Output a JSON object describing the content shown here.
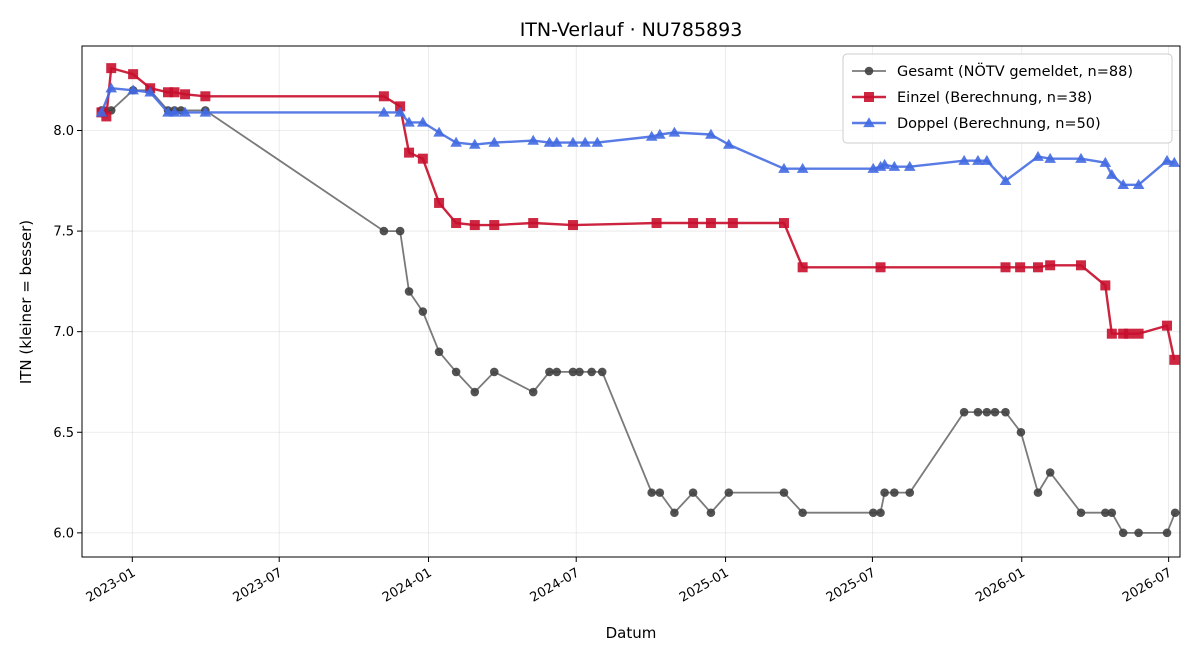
{
  "chart_data": {
    "type": "line",
    "title": "ITN-Verlauf · NU785893",
    "xlabel": "Datum",
    "ylabel": "ITN  (kleiner = besser)",
    "x_axis": "date",
    "xlim": [
      "2022-10-31",
      "2026-07-15"
    ],
    "ylim": [
      5.88,
      8.42
    ],
    "x_ticks": [
      "2023-01-01",
      "2023-07-01",
      "2024-01-01",
      "2024-07-01",
      "2025-01-01",
      "2025-07-01",
      "2026-01-01",
      "2026-07-01"
    ],
    "x_tick_labels": [
      "2023-01",
      "2023-07",
      "2024-01",
      "2024-07",
      "2025-01",
      "2025-07",
      "2026-01",
      "2026-07"
    ],
    "y_ticks": [
      6.0,
      6.5,
      7.0,
      7.5,
      8.0
    ],
    "y_tick_labels": [
      "6.0",
      "6.5",
      "7.0",
      "7.5",
      "8.0"
    ],
    "grid": true,
    "legend_position": "top-right",
    "series": [
      {
        "name": "Gesamt (NÖTV gemeldet, n=88)",
        "color": "#555555",
        "marker": "circle",
        "points": [
          [
            "2022-11-24",
            8.1
          ],
          [
            "2022-11-27",
            8.1
          ],
          [
            "2022-12-06",
            8.1
          ],
          [
            "2023-01-02",
            8.2
          ],
          [
            "2023-01-23",
            8.2
          ],
          [
            "2023-02-14",
            8.1
          ],
          [
            "2023-02-22",
            8.1
          ],
          [
            "2023-03-02",
            8.1
          ],
          [
            "2023-04-01",
            8.1
          ],
          [
            "2023-11-07",
            7.5
          ],
          [
            "2023-11-27",
            7.5
          ],
          [
            "2023-12-08",
            7.2
          ],
          [
            "2023-12-25",
            7.1
          ],
          [
            "2024-01-14",
            6.9
          ],
          [
            "2024-02-04",
            6.8
          ],
          [
            "2024-02-27",
            6.7
          ],
          [
            "2024-03-22",
            6.8
          ],
          [
            "2024-05-09",
            6.7
          ],
          [
            "2024-05-29",
            6.8
          ],
          [
            "2024-06-07",
            6.8
          ],
          [
            "2024-06-27",
            6.8
          ],
          [
            "2024-07-05",
            6.8
          ],
          [
            "2024-07-20",
            6.8
          ],
          [
            "2024-08-02",
            6.8
          ],
          [
            "2024-10-02",
            6.2
          ],
          [
            "2024-10-12",
            6.2
          ],
          [
            "2024-10-30",
            6.1
          ],
          [
            "2024-11-22",
            6.2
          ],
          [
            "2024-12-14",
            6.1
          ],
          [
            "2025-01-05",
            6.2
          ],
          [
            "2025-03-14",
            6.2
          ],
          [
            "2025-04-06",
            6.1
          ],
          [
            "2025-07-02",
            6.1
          ],
          [
            "2025-07-11",
            6.1
          ],
          [
            "2025-07-16",
            6.2
          ],
          [
            "2025-07-28",
            6.2
          ],
          [
            "2025-08-16",
            6.2
          ],
          [
            "2025-10-22",
            6.6
          ],
          [
            "2025-11-08",
            6.6
          ],
          [
            "2025-11-19",
            6.6
          ],
          [
            "2025-11-29",
            6.6
          ],
          [
            "2025-12-12",
            6.6
          ],
          [
            "2025-12-31",
            6.5
          ],
          [
            "2026-01-21",
            6.2
          ],
          [
            "2026-02-05",
            6.3
          ],
          [
            "2026-03-15",
            6.1
          ],
          [
            "2026-04-14",
            6.1
          ],
          [
            "2026-04-22",
            6.1
          ],
          [
            "2026-05-06",
            6.0
          ],
          [
            "2026-05-25",
            6.0
          ],
          [
            "2026-06-29",
            6.0
          ],
          [
            "2026-07-09",
            6.1
          ]
        ]
      },
      {
        "name": "Einzel (Berechnung, n=38)",
        "color": "#c8102e",
        "marker": "square",
        "points": [
          [
            "2022-11-24",
            8.09
          ],
          [
            "2022-11-30",
            8.07
          ],
          [
            "2022-12-06",
            8.31
          ],
          [
            "2023-01-02",
            8.28
          ],
          [
            "2023-01-23",
            8.21
          ],
          [
            "2023-02-14",
            8.19
          ],
          [
            "2023-02-22",
            8.19
          ],
          [
            "2023-03-07",
            8.18
          ],
          [
            "2023-04-01",
            8.17
          ],
          [
            "2023-11-07",
            8.17
          ],
          [
            "2023-11-27",
            8.12
          ],
          [
            "2023-12-08",
            7.89
          ],
          [
            "2023-12-25",
            7.86
          ],
          [
            "2024-01-14",
            7.64
          ],
          [
            "2024-02-04",
            7.54
          ],
          [
            "2024-02-27",
            7.53
          ],
          [
            "2024-03-22",
            7.53
          ],
          [
            "2024-05-09",
            7.54
          ],
          [
            "2024-06-27",
            7.53
          ],
          [
            "2024-10-08",
            7.54
          ],
          [
            "2024-11-22",
            7.54
          ],
          [
            "2024-12-14",
            7.54
          ],
          [
            "2025-01-10",
            7.54
          ],
          [
            "2025-03-14",
            7.54
          ],
          [
            "2025-04-06",
            7.32
          ],
          [
            "2025-07-11",
            7.32
          ],
          [
            "2025-12-12",
            7.32
          ],
          [
            "2025-12-30",
            7.32
          ],
          [
            "2026-01-21",
            7.32
          ],
          [
            "2026-02-05",
            7.33
          ],
          [
            "2026-03-15",
            7.33
          ],
          [
            "2026-04-14",
            7.23
          ],
          [
            "2026-04-22",
            6.99
          ],
          [
            "2026-05-06",
            6.99
          ],
          [
            "2026-05-13",
            6.99
          ],
          [
            "2026-05-25",
            6.99
          ],
          [
            "2026-06-29",
            7.03
          ],
          [
            "2026-07-08",
            6.86
          ]
        ]
      },
      {
        "name": "Doppel (Berechnung, n=50)",
        "color": "#4169e1",
        "marker": "triangle",
        "points": [
          [
            "2022-11-24",
            8.09
          ],
          [
            "2022-12-06",
            8.21
          ],
          [
            "2023-01-02",
            8.2
          ],
          [
            "2023-01-23",
            8.19
          ],
          [
            "2023-02-14",
            8.09
          ],
          [
            "2023-02-22",
            8.09
          ],
          [
            "2023-03-07",
            8.09
          ],
          [
            "2023-04-01",
            8.09
          ],
          [
            "2023-11-07",
            8.09
          ],
          [
            "2023-11-27",
            8.09
          ],
          [
            "2023-12-08",
            8.04
          ],
          [
            "2023-12-25",
            8.04
          ],
          [
            "2024-01-14",
            7.99
          ],
          [
            "2024-02-04",
            7.94
          ],
          [
            "2024-02-27",
            7.93
          ],
          [
            "2024-03-22",
            7.94
          ],
          [
            "2024-05-09",
            7.95
          ],
          [
            "2024-05-29",
            7.94
          ],
          [
            "2024-06-07",
            7.94
          ],
          [
            "2024-06-27",
            7.94
          ],
          [
            "2024-07-12",
            7.94
          ],
          [
            "2024-07-27",
            7.94
          ],
          [
            "2024-10-02",
            7.97
          ],
          [
            "2024-10-12",
            7.98
          ],
          [
            "2024-10-30",
            7.99
          ],
          [
            "2024-12-14",
            7.98
          ],
          [
            "2025-01-05",
            7.93
          ],
          [
            "2025-03-14",
            7.81
          ],
          [
            "2025-04-06",
            7.81
          ],
          [
            "2025-07-02",
            7.81
          ],
          [
            "2025-07-11",
            7.82
          ],
          [
            "2025-07-16",
            7.83
          ],
          [
            "2025-07-28",
            7.82
          ],
          [
            "2025-08-16",
            7.82
          ],
          [
            "2025-10-22",
            7.85
          ],
          [
            "2025-11-08",
            7.85
          ],
          [
            "2025-11-19",
            7.85
          ],
          [
            "2025-12-12",
            7.75
          ],
          [
            "2026-01-21",
            7.87
          ],
          [
            "2026-02-05",
            7.86
          ],
          [
            "2026-03-15",
            7.86
          ],
          [
            "2026-04-14",
            7.84
          ],
          [
            "2026-04-22",
            7.78
          ],
          [
            "2026-05-06",
            7.73
          ],
          [
            "2026-05-25",
            7.73
          ],
          [
            "2026-06-29",
            7.85
          ],
          [
            "2026-07-08",
            7.84
          ]
        ]
      }
    ]
  }
}
